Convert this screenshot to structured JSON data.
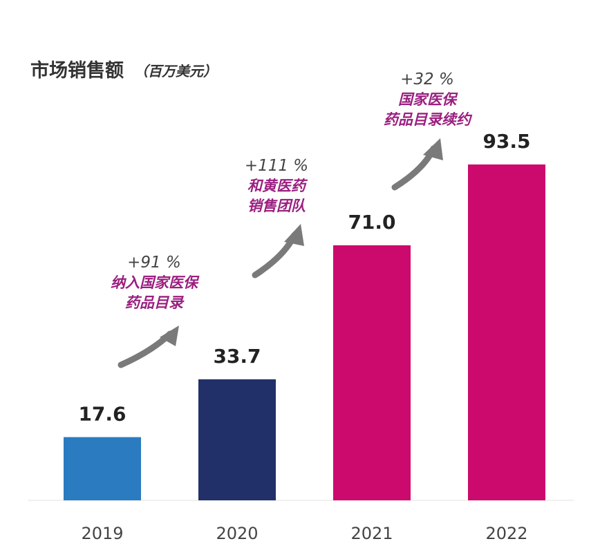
{
  "chart_data": {
    "type": "bar",
    "title": "市场销售额",
    "unit_label": "（百万美元）",
    "xlabel": "",
    "ylabel": "",
    "ylim": [
      0,
      100
    ],
    "grid": false,
    "categories": [
      "2019",
      "2020",
      "2021",
      "2022"
    ],
    "values": [
      17.6,
      33.7,
      71.0,
      93.5
    ],
    "value_labels": [
      "17.6",
      "33.7",
      "71.0",
      "93.5"
    ],
    "bar_colors": [
      "#2b7bc1",
      "#22306a",
      "#cc0a6d",
      "#cc0a6d"
    ],
    "annotations": [
      {
        "pct": "+91 %",
        "lines": [
          "纳入国家医保",
          "药品目录"
        ]
      },
      {
        "pct": "+111 %",
        "lines": [
          "和黄医药",
          "销售团队"
        ]
      },
      {
        "pct": "+32 %",
        "lines": [
          "国家医保",
          "药品目录续约"
        ]
      }
    ]
  },
  "colors": {
    "annotation_text": "#9b1f80",
    "pct_text": "#444444",
    "arrow": "#7a7a7a",
    "title": "#333333",
    "value_text": "#222222",
    "axis_label": "#444444",
    "baseline": "#e2e2e2"
  }
}
